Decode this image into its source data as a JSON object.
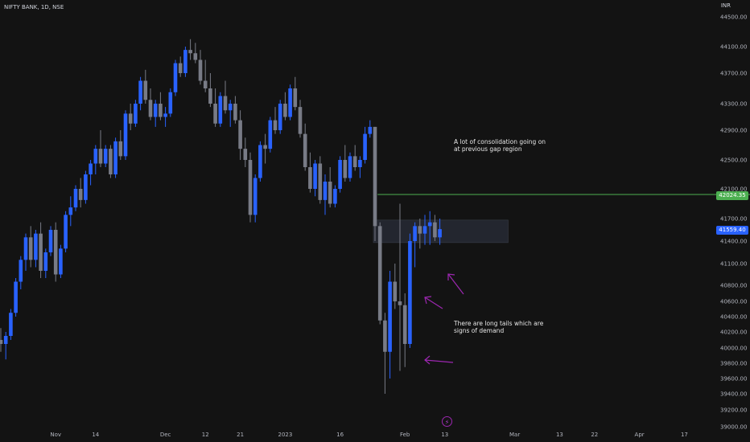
{
  "header": {
    "ticker": "NIFTY BANK, 1D, NSE",
    "currency": "INR"
  },
  "annotations": {
    "consolidation": "A lot of consolidation going on\nat previous gap region",
    "tails": "There are long tails which are\nsigns of demand"
  },
  "price_tags": {
    "resistance": "42024.35",
    "last": "41559.40"
  },
  "events": {
    "bolt_icon": "lightning-bolt-icon"
  },
  "colors": {
    "background": "#131313",
    "up": "#2962ff",
    "down": "#787b86",
    "resistance_line": "#4caf50",
    "arrow": "#9c27b0",
    "zone": "#2a2e39"
  },
  "chart_data": {
    "type": "candlestick",
    "title": "NIFTY BANK, 1D, NSE",
    "ylabel": "INR",
    "ylim": [
      38900,
      44700
    ],
    "y_ticks": [
      39000,
      39200,
      39400,
      39600,
      39800,
      40000,
      40200,
      40400,
      40600,
      40800,
      41100,
      41400,
      41700,
      42100,
      42500,
      42900,
      43300,
      43700,
      44100,
      44500
    ],
    "x_ticks": [
      {
        "label": "Nov",
        "i": 11
      },
      {
        "label": "14",
        "i": 19
      },
      {
        "label": "Dec",
        "i": 33
      },
      {
        "label": "12",
        "i": 41
      },
      {
        "label": "21",
        "i": 48
      },
      {
        "label": "2023",
        "i": 57
      },
      {
        "label": "16",
        "i": 68
      },
      {
        "label": "Feb",
        "i": 81
      },
      {
        "label": "13",
        "i": 89
      },
      {
        "label": "Mar",
        "i": 103
      },
      {
        "label": "13",
        "i": 112
      },
      {
        "label": "22",
        "i": 119
      },
      {
        "label": "Apr",
        "i": 128
      },
      {
        "label": "17",
        "i": 137
      }
    ],
    "ohlc": [
      [
        40100,
        40250,
        39950,
        40050
      ],
      [
        40050,
        40200,
        39850,
        40150
      ],
      [
        40150,
        40500,
        40100,
        40450
      ],
      [
        40450,
        40900,
        40400,
        40850
      ],
      [
        40850,
        41200,
        40750,
        41150
      ],
      [
        41150,
        41500,
        41000,
        41450
      ],
      [
        41450,
        41600,
        41050,
        41150
      ],
      [
        41150,
        41550,
        41050,
        41500
      ],
      [
        41500,
        41650,
        40900,
        41000
      ],
      [
        41000,
        41300,
        40900,
        41250
      ],
      [
        41250,
        41600,
        41200,
        41550
      ],
      [
        41550,
        41650,
        40850,
        40950
      ],
      [
        40950,
        41350,
        40900,
        41300
      ],
      [
        41300,
        41800,
        41250,
        41750
      ],
      [
        41750,
        42000,
        41600,
        41850
      ],
      [
        41850,
        42150,
        41800,
        42100
      ],
      [
        42100,
        42250,
        41850,
        41950
      ],
      [
        41950,
        42350,
        41900,
        42300
      ],
      [
        42300,
        42500,
        42150,
        42450
      ],
      [
        42450,
        42700,
        42300,
        42650
      ],
      [
        42650,
        42900,
        42400,
        42450
      ],
      [
        42450,
        42700,
        42400,
        42650
      ],
      [
        42650,
        42700,
        42250,
        42300
      ],
      [
        42300,
        42800,
        42250,
        42750
      ],
      [
        42750,
        42900,
        42500,
        42550
      ],
      [
        42550,
        43200,
        42500,
        43150
      ],
      [
        43150,
        43300,
        42900,
        43000
      ],
      [
        43000,
        43350,
        42950,
        43300
      ],
      [
        43300,
        43650,
        43200,
        43600
      ],
      [
        43600,
        43750,
        43300,
        43350
      ],
      [
        43350,
        43500,
        43050,
        43100
      ],
      [
        43100,
        43350,
        42950,
        43300
      ],
      [
        43300,
        43450,
        43050,
        43100
      ],
      [
        43100,
        43250,
        42950,
        43150
      ],
      [
        43150,
        43500,
        43100,
        43450
      ],
      [
        43450,
        43900,
        43400,
        43850
      ],
      [
        43850,
        43950,
        43650,
        43700
      ],
      [
        43700,
        44100,
        43650,
        44050
      ],
      [
        44050,
        44200,
        43900,
        44000
      ],
      [
        44000,
        44150,
        43850,
        43900
      ],
      [
        43900,
        44050,
        43550,
        43600
      ],
      [
        43600,
        43900,
        43450,
        43500
      ],
      [
        43500,
        43700,
        43250,
        43300
      ],
      [
        43300,
        43500,
        42950,
        43000
      ],
      [
        43000,
        43450,
        42950,
        43400
      ],
      [
        43400,
        43600,
        43150,
        43200
      ],
      [
        43200,
        43350,
        42950,
        43300
      ],
      [
        43300,
        43400,
        43000,
        43050
      ],
      [
        43050,
        43200,
        42500,
        42650
      ],
      [
        42650,
        42800,
        42400,
        42500
      ],
      [
        42500,
        42600,
        41650,
        41750
      ],
      [
        41750,
        42300,
        41650,
        42250
      ],
      [
        42250,
        42750,
        42200,
        42700
      ],
      [
        42700,
        42850,
        42450,
        42650
      ],
      [
        42650,
        43100,
        42600,
        43050
      ],
      [
        43050,
        43250,
        42850,
        42900
      ],
      [
        42900,
        43350,
        42850,
        43300
      ],
      [
        43300,
        43450,
        43050,
        43100
      ],
      [
        43100,
        43550,
        43050,
        43500
      ],
      [
        43500,
        43650,
        43200,
        43250
      ],
      [
        43250,
        43350,
        42800,
        42850
      ],
      [
        42850,
        43000,
        42350,
        42400
      ],
      [
        42400,
        42600,
        42050,
        42100
      ],
      [
        42100,
        42500,
        42000,
        42450
      ],
      [
        42450,
        42550,
        41900,
        41950
      ],
      [
        41950,
        42300,
        41750,
        42200
      ],
      [
        42200,
        42400,
        41850,
        41900
      ],
      [
        41900,
        42150,
        41850,
        42100
      ],
      [
        42100,
        42550,
        42050,
        42500
      ],
      [
        42500,
        42700,
        42200,
        42250
      ],
      [
        42250,
        42600,
        42200,
        42550
      ],
      [
        42550,
        42700,
        42350,
        42400
      ],
      [
        42400,
        42550,
        42250,
        42500
      ],
      [
        42500,
        42950,
        42450,
        42850
      ],
      [
        42850,
        43050,
        42800,
        42950
      ],
      [
        42950,
        42950,
        41400,
        41600
      ],
      [
        41600,
        41650,
        40300,
        40350
      ],
      [
        40350,
        40450,
        39400,
        39950
      ],
      [
        39950,
        41000,
        39600,
        40850
      ],
      [
        40850,
        41100,
        40500,
        40600
      ],
      [
        40600,
        41900,
        39700,
        40550
      ],
      [
        40550,
        40700,
        39750,
        40050
      ],
      [
        40050,
        41500,
        40000,
        41400
      ],
      [
        41400,
        41650,
        41050,
        41600
      ],
      [
        41600,
        41700,
        41300,
        41500
      ],
      [
        41500,
        41750,
        41350,
        41600
      ],
      [
        41600,
        41800,
        41350,
        41650
      ],
      [
        41650,
        41750,
        41400,
        41450
      ],
      [
        41450,
        41700,
        41350,
        41559.4
      ]
    ],
    "levels": [
      {
        "type": "resistance",
        "value": 42024.35
      }
    ],
    "zone": {
      "from_i": 75,
      "to_i": 102,
      "low": 41380,
      "high": 41680
    }
  }
}
